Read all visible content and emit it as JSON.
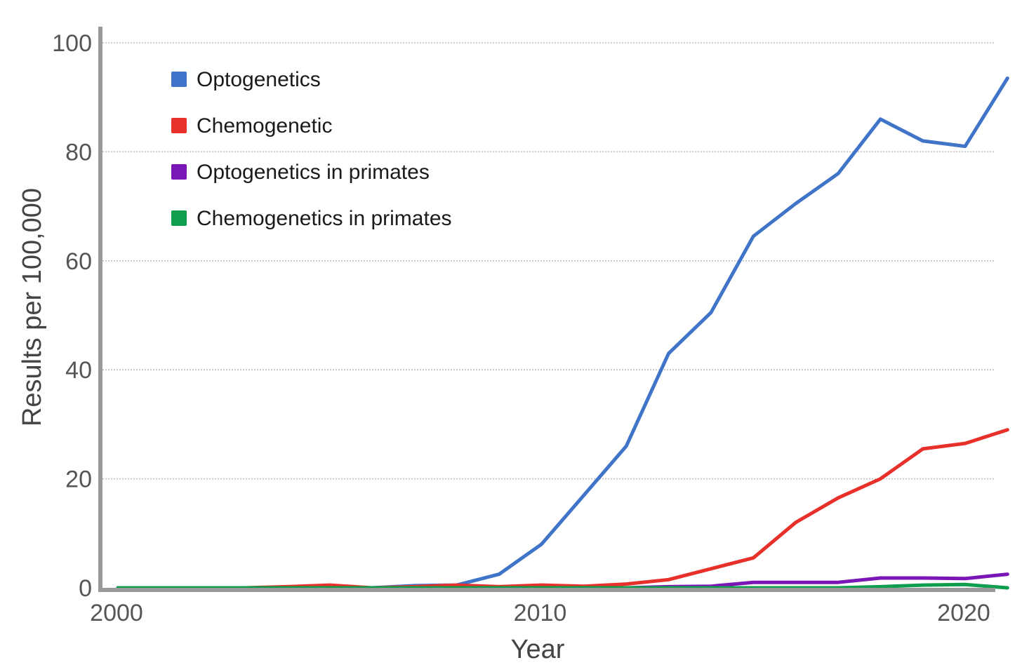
{
  "chart_data": {
    "type": "line",
    "title": "",
    "xlabel": "Year",
    "ylabel": "Results per 100,000",
    "xlim": [
      2000,
      2021
    ],
    "ylim": [
      0,
      100
    ],
    "x_ticks": [
      2000,
      2010,
      2020
    ],
    "y_ticks": [
      0,
      20,
      40,
      60,
      80,
      100
    ],
    "grid": true,
    "legend_position": "top-left",
    "x": [
      2000,
      2001,
      2002,
      2003,
      2004,
      2005,
      2006,
      2007,
      2008,
      2009,
      2010,
      2011,
      2012,
      2013,
      2014,
      2015,
      2016,
      2017,
      2018,
      2019,
      2020,
      2021
    ],
    "series": [
      {
        "name": "Optogenetics",
        "color": "#3f74c8",
        "values": [
          0,
          0,
          0,
          0,
          0,
          0,
          0,
          0.4,
          0.5,
          2.5,
          8,
          17,
          26,
          43,
          50.5,
          64.5,
          70.5,
          76,
          86,
          82,
          81,
          93.5
        ]
      },
      {
        "name": "Chemogenetic",
        "color": "#e8302a",
        "values": [
          0,
          0,
          0,
          0,
          0.2,
          0.5,
          0,
          0.2,
          0.5,
          0.2,
          0.5,
          0.3,
          0.7,
          1.5,
          3.5,
          5.5,
          12,
          16.5,
          20,
          25.5,
          26.5,
          29
        ]
      },
      {
        "name": "Optogenetics in primates",
        "color": "#7a16b6",
        "values": [
          0,
          0,
          0,
          0,
          0,
          0,
          0,
          0,
          0,
          0,
          0,
          0,
          0,
          0.2,
          0.3,
          1,
          1,
          1,
          1.8,
          1.8,
          1.7,
          2.5
        ]
      },
      {
        "name": "Chemogenetics in primates",
        "color": "#0f9e4e",
        "values": [
          0,
          0,
          0,
          0,
          0,
          0,
          0,
          0,
          0,
          0,
          0,
          0,
          0,
          0,
          0,
          0,
          0,
          0,
          0.2,
          0.5,
          0.6,
          0
        ]
      }
    ]
  },
  "style": {
    "axis_color": "#999999",
    "grid_color": "#bbbbbb",
    "background": "#ffffff"
  }
}
